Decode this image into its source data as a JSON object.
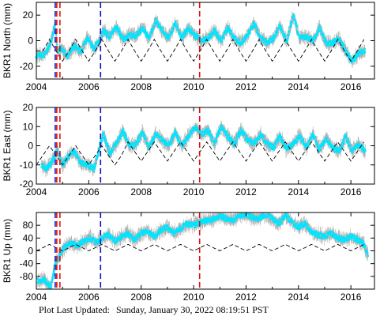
{
  "footer": {
    "label": "Plot Last Updated:",
    "datetime": "Sunday, January 30, 2022 08:19:51 PST"
  },
  "colors": {
    "data": "#00e5ff",
    "error_bars": "#b0b0b0",
    "model": "#000000",
    "event_blue": "#1010c0",
    "event_red": "#dd1010"
  },
  "chart_data": [
    {
      "type": "scatter",
      "panel": "north",
      "ylabel": "BKR1 North (mm)",
      "xlim": [
        2004,
        2016.9
      ],
      "ylim": [
        -30,
        30
      ],
      "xticks": [
        2004,
        2006,
        2008,
        2010,
        2012,
        2014,
        2016
      ],
      "yticks": [
        -20,
        0,
        20
      ],
      "vlines": [
        {
          "x": 2004.72,
          "color": "blue"
        },
        {
          "x": 2004.78,
          "color": "red"
        },
        {
          "x": 2004.9,
          "color": "red"
        },
        {
          "x": 2006.45,
          "color": "blue"
        },
        {
          "x": 2010.23,
          "color": "red"
        }
      ],
      "series": [
        {
          "style": "observed",
          "x": [
            2004.0,
            2004.3,
            2004.55,
            2004.65,
            2004.72,
            2004.8,
            2004.95,
            2005.2,
            2005.45,
            2005.7,
            2005.95,
            2006.2,
            2006.45,
            2006.55,
            2006.8,
            2007.05,
            2007.3,
            2007.55,
            2007.8,
            2008.05,
            2008.3,
            2008.55,
            2008.8,
            2009.05,
            2009.3,
            2009.55,
            2009.8,
            2010.05,
            2010.3,
            2010.55,
            2010.8,
            2011.05,
            2011.3,
            2011.55,
            2011.8,
            2012.05,
            2012.3,
            2012.55,
            2012.8,
            2013.05,
            2013.3,
            2013.55,
            2013.8,
            2014.05,
            2014.3,
            2014.55,
            2014.8,
            2015.05,
            2015.3,
            2015.55,
            2015.8,
            2016.05,
            2016.3,
            2016.55
          ],
          "y": [
            -12,
            -11,
            -2,
            8,
            12,
            -8,
            -6,
            -12,
            -4,
            -9,
            2,
            -6,
            1,
            8,
            3,
            11,
            1,
            4,
            4,
            10,
            2,
            16,
            8,
            2,
            14,
            2,
            10,
            4,
            0,
            2,
            8,
            0,
            10,
            2,
            -2,
            4,
            13,
            2,
            -2,
            2,
            12,
            -1,
            20,
            2,
            3,
            0,
            10,
            -2,
            -2,
            2,
            -8,
            -16,
            -10,
            -7
          ]
        },
        {
          "style": "model",
          "x": [
            2004.0,
            2004.25,
            2004.5,
            2004.75,
            2005.0,
            2005.25,
            2005.5,
            2005.75,
            2006.0,
            2006.25,
            2006.5,
            2006.75,
            2007.0,
            2007.25,
            2007.5,
            2007.75,
            2008.0,
            2008.25,
            2008.5,
            2008.75,
            2009.0,
            2009.25,
            2009.5,
            2009.75,
            2010.0,
            2010.25,
            2010.5,
            2010.75,
            2011.0,
            2011.25,
            2011.5,
            2011.75,
            2012.0,
            2012.25,
            2012.5,
            2012.75,
            2013.0,
            2013.25,
            2013.5,
            2013.75,
            2014.0,
            2014.25,
            2014.5,
            2014.75,
            2015.0,
            2015.25,
            2015.5,
            2015.75,
            2016.0,
            2016.25,
            2016.5
          ],
          "y": [
            -8,
            -8,
            1,
            -8,
            -16,
            -8,
            1,
            -8,
            -16,
            -8,
            1,
            -8,
            -16,
            -8,
            1,
            -8,
            -16,
            -8,
            1,
            -8,
            -16,
            -8,
            1,
            -8,
            -16,
            -8,
            1,
            -8,
            -16,
            -8,
            1,
            -8,
            -16,
            -8,
            1,
            -8,
            -16,
            -8,
            1,
            -8,
            -16,
            -8,
            1,
            -8,
            -16,
            -8,
            1,
            -8,
            -16,
            -8,
            1
          ]
        }
      ]
    },
    {
      "type": "scatter",
      "panel": "east",
      "ylabel": "BKR1 East (mm)",
      "xlim": [
        2004,
        2016.9
      ],
      "ylim": [
        -20,
        20
      ],
      "xticks": [
        2004,
        2006,
        2008,
        2010,
        2012,
        2014,
        2016
      ],
      "yticks": [
        -20,
        -10,
        0,
        10,
        20
      ],
      "vlines": [
        {
          "x": 2004.72,
          "color": "blue"
        },
        {
          "x": 2004.78,
          "color": "red"
        },
        {
          "x": 2004.9,
          "color": "red"
        },
        {
          "x": 2006.45,
          "color": "blue"
        },
        {
          "x": 2010.23,
          "color": "red"
        }
      ],
      "series": [
        {
          "style": "observed",
          "x": [
            2004.2,
            2004.4,
            2004.6,
            2004.72,
            2004.8,
            2005.0,
            2005.2,
            2005.45,
            2005.7,
            2005.95,
            2006.2,
            2006.45,
            2006.55,
            2006.8,
            2007.05,
            2007.3,
            2007.55,
            2007.8,
            2008.05,
            2008.3,
            2008.55,
            2008.8,
            2009.05,
            2009.3,
            2009.55,
            2009.8,
            2010.05,
            2010.3,
            2010.55,
            2010.8,
            2011.05,
            2011.3,
            2011.55,
            2011.8,
            2012.05,
            2012.3,
            2012.55,
            2012.8,
            2013.05,
            2013.3,
            2013.55,
            2013.8,
            2014.05,
            2014.3,
            2014.55,
            2014.8,
            2015.05,
            2015.3,
            2015.55,
            2015.8,
            2016.05,
            2016.3,
            2016.55
          ],
          "y": [
            -10,
            -12,
            -8,
            -5,
            -2,
            -10,
            -6,
            -3,
            -9,
            -10,
            -12,
            1,
            6,
            -4,
            1,
            8,
            0,
            1,
            7,
            -1,
            6,
            3,
            0,
            7,
            0,
            5,
            10,
            6,
            8,
            1,
            10,
            5,
            1,
            8,
            3,
            1,
            6,
            1,
            -1,
            5,
            -2,
            1,
            5,
            -1,
            6,
            -2,
            4,
            -1,
            -3,
            5,
            -3,
            1,
            -3
          ]
        },
        {
          "style": "model",
          "x": [
            2004.0,
            2004.25,
            2004.5,
            2004.75,
            2005.0,
            2005.25,
            2005.5,
            2005.75,
            2006.0,
            2006.25,
            2006.5,
            2006.75,
            2007.0,
            2007.25,
            2007.5,
            2007.75,
            2008.0,
            2008.25,
            2008.5,
            2008.75,
            2009.0,
            2009.25,
            2009.5,
            2009.75,
            2010.0,
            2010.25,
            2010.5,
            2010.75,
            2011.0,
            2011.25,
            2011.5,
            2011.75,
            2012.0,
            2012.25,
            2012.5,
            2012.75,
            2013.0,
            2013.25,
            2013.5,
            2013.75,
            2014.0,
            2014.25,
            2014.5,
            2014.75,
            2015.0,
            2015.25,
            2015.5,
            2015.75,
            2016.0,
            2016.25,
            2016.5
          ],
          "y": [
            -10,
            -5,
            0,
            -5,
            -10,
            -5,
            0,
            -5,
            -10,
            -5,
            0,
            -5,
            -10,
            -5,
            2,
            -3,
            -8,
            -3,
            2,
            -3,
            -8,
            -3,
            2,
            -3,
            -8,
            -3,
            2,
            -3,
            -8,
            -3,
            2,
            -3,
            -8,
            -3,
            2,
            -3,
            -8,
            -3,
            2,
            -3,
            -8,
            -3,
            2,
            -3,
            -8,
            -3,
            2,
            -3,
            -8,
            -3,
            2
          ]
        }
      ]
    },
    {
      "type": "scatter",
      "panel": "up",
      "ylabel": "BKR1 Up (mm)",
      "xlim": [
        2004,
        2016.9
      ],
      "ylim": [
        -120,
        120
      ],
      "xticks": [
        2004,
        2006,
        2008,
        2010,
        2012,
        2014,
        2016
      ],
      "yticks": [
        -80,
        -40,
        0,
        40,
        80
      ],
      "vlines": [
        {
          "x": 2004.72,
          "color": "blue"
        },
        {
          "x": 2004.78,
          "color": "red"
        },
        {
          "x": 2004.9,
          "color": "red"
        },
        {
          "x": 2006.45,
          "color": "blue"
        },
        {
          "x": 2010.23,
          "color": "red"
        }
      ],
      "series": [
        {
          "style": "observed",
          "x": [
            2004.05,
            2004.3,
            2004.55,
            2004.72,
            2004.85,
            2005.05,
            2005.3,
            2005.55,
            2005.8,
            2006.05,
            2006.3,
            2006.5,
            2006.75,
            2007.0,
            2007.25,
            2007.5,
            2007.75,
            2008.0,
            2008.25,
            2008.5,
            2008.75,
            2009.0,
            2009.25,
            2009.5,
            2009.75,
            2010.0,
            2010.25,
            2010.5,
            2010.75,
            2011.0,
            2011.25,
            2011.5,
            2011.75,
            2012.0,
            2012.25,
            2012.5,
            2012.75,
            2013.0,
            2013.25,
            2013.5,
            2013.75,
            2014.0,
            2014.25,
            2014.5,
            2014.75,
            2015.0,
            2015.25,
            2015.5,
            2015.75,
            2016.0,
            2016.25,
            2016.5,
            2016.65
          ],
          "y": [
            -95,
            -90,
            -115,
            -40,
            -20,
            10,
            25,
            15,
            30,
            40,
            25,
            40,
            50,
            30,
            45,
            55,
            35,
            55,
            60,
            45,
            65,
            75,
            55,
            70,
            85,
            80,
            90,
            95,
            100,
            110,
            100,
            95,
            110,
            115,
            105,
            100,
            115,
            100,
            85,
            110,
            90,
            75,
            85,
            60,
            50,
            45,
            55,
            40,
            35,
            45,
            35,
            20,
            -15
          ]
        },
        {
          "style": "model",
          "x": [
            2004.0,
            2004.25,
            2004.5,
            2004.75,
            2005.0,
            2005.25,
            2005.5,
            2005.75,
            2006.0,
            2006.25,
            2006.5,
            2006.75,
            2007.0,
            2007.25,
            2007.5,
            2007.75,
            2008.0,
            2008.25,
            2008.5,
            2008.75,
            2009.0,
            2009.25,
            2009.5,
            2009.75,
            2010.0,
            2010.25,
            2010.5,
            2010.75,
            2011.0,
            2011.25,
            2011.5,
            2011.75,
            2012.0,
            2012.25,
            2012.5,
            2012.75,
            2013.0,
            2013.25,
            2013.5,
            2013.75,
            2014.0,
            2014.25,
            2014.5,
            2014.75,
            2015.0,
            2015.25,
            2015.5,
            2015.75,
            2016.0,
            2016.25,
            2016.5
          ],
          "y": [
            0,
            10,
            20,
            10,
            0,
            10,
            20,
            10,
            0,
            10,
            20,
            10,
            0,
            10,
            20,
            10,
            0,
            10,
            20,
            10,
            0,
            10,
            20,
            10,
            0,
            10,
            20,
            10,
            0,
            10,
            20,
            10,
            0,
            10,
            20,
            10,
            0,
            10,
            20,
            10,
            0,
            10,
            20,
            10,
            0,
            10,
            20,
            10,
            0,
            10,
            20
          ]
        }
      ]
    }
  ]
}
